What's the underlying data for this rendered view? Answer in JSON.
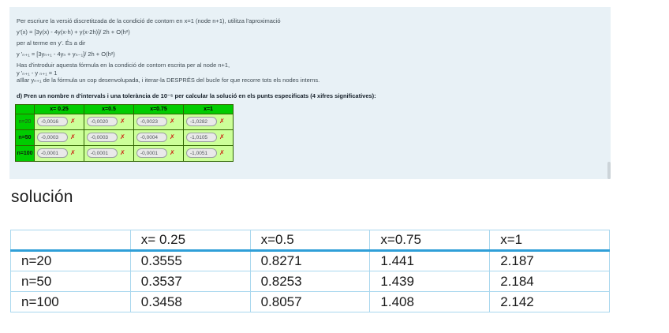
{
  "panel": {
    "line1": "Per escriure la versió discretitzada de la condició de contorn en x=1 (node n+1), utilitza l'aproximació",
    "formula1": "y'(x) = [3y(x) - 4y(x-h) + y(x-2h)]/ 2h + O(h²)",
    "line3": "per al terme en y'. És a dir",
    "formula2": "y 'ₙ₊₁ = [3yₙ₊₁ - 4yₙ + yₙ₋₁]/ 2h + O(h²)",
    "line5": "Has d'introduir aquesta fórmula en la condició de contorn escrita per al node n+1,",
    "formula3": "y 'ₙ₊₁ -  y ₙ₊₁  = 1",
    "line7": "aïllar yₙ₊₁ de la fórmula un cop desenvolupada, i iterar-la DESPRÉS del bucle for que recorre tots els nodes interns.",
    "task": "d) Pren un nombre n d'intervals i una tolerància de 10⁻⁵ per calcular la solució en els punts especificats (4 xifres significatives):"
  },
  "grid_table": {
    "col_headers": [
      "x= 0.25",
      "x=0.5",
      "x=0.75",
      "x=1"
    ],
    "rows": [
      {
        "label": "n=20",
        "values": [
          "-0,0016",
          "-0,0020",
          "-0,0023",
          "-1,0282"
        ]
      },
      {
        "label": "n=50",
        "values": [
          "-0,0003",
          "-0,0003",
          "-0,0004",
          "-1,0105"
        ]
      },
      {
        "label": "n=100",
        "values": [
          "-0,0001",
          "-0,0001",
          "-0,0001",
          "-1,0051"
        ]
      }
    ],
    "mark": "✗"
  },
  "heading": "solución",
  "results_table": {
    "col_headers": [
      "",
      "x= 0.25",
      "x=0.5",
      "x=0.75",
      "x=1"
    ],
    "rows": [
      {
        "label": "n=20",
        "values": [
          "0.3555",
          "0.8271",
          "1.441",
          "2.187"
        ]
      },
      {
        "label": "n=50",
        "values": [
          "0.3537",
          "0.8253",
          "1.439",
          "2.184"
        ]
      },
      {
        "label": "n=100",
        "values": [
          "0.3458",
          "0.8057",
          "1.408",
          "2.142"
        ]
      }
    ]
  },
  "colors": {
    "panel_bg": "#e8f1f6",
    "grid_header_green": "#00cc00",
    "grid_cell_green": "#ccff99",
    "grid_border_green": "#2f6500",
    "error_red": "#cc1e11",
    "results_border_blue": "#a9d7ee",
    "results_header_rule_blue": "#2f9fd8"
  }
}
